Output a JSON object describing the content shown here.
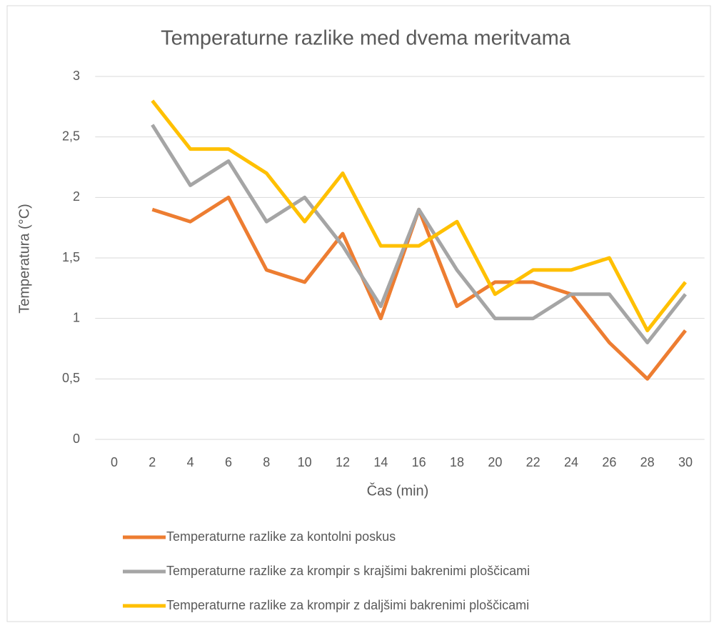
{
  "chart_data": {
    "type": "line",
    "title": "Temperaturne razlike med dvema meritvama",
    "x_label": "Čas (min)",
    "y_label": "Temperatura (°C)",
    "categories": [
      "0",
      "2",
      "4",
      "6",
      "8",
      "10",
      "12",
      "14",
      "16",
      "18",
      "20",
      "22",
      "24",
      "26",
      "28",
      "30"
    ],
    "series": [
      {
        "name": "Temperaturne razlike za kontolni poskus",
        "color": "#ed7d31",
        "values": [
          null,
          1.9,
          1.8,
          2.0,
          1.4,
          1.3,
          1.7,
          1.0,
          1.9,
          1.1,
          1.3,
          1.3,
          1.2,
          0.8,
          0.5,
          0.9
        ]
      },
      {
        "name": "Temperaturne razlike za krompir s krajšimi bakrenimi ploščicami",
        "color": "#a5a5a5",
        "values": [
          null,
          2.6,
          2.1,
          2.3,
          1.8,
          2.0,
          1.6,
          1.1,
          1.9,
          1.4,
          1.0,
          1.0,
          1.2,
          1.2,
          0.8,
          1.2
        ]
      },
      {
        "name": "Temperaturne razlike za krompir z daljšimi bakrenimi ploščicami",
        "color": "#ffc000",
        "values": [
          null,
          2.8,
          2.4,
          2.4,
          2.2,
          1.8,
          2.2,
          1.6,
          1.6,
          1.8,
          1.2,
          1.4,
          1.4,
          1.5,
          0.9,
          1.3
        ]
      }
    ],
    "ylim": [
      0,
      3
    ],
    "yticks": [
      0,
      {
        "value": 0.5,
        "label": "0,5"
      },
      1,
      {
        "value": 1.5,
        "label": "1,5"
      },
      2,
      {
        "value": 2.5,
        "label": "2,5"
      },
      3
    ],
    "grid": true,
    "legend": "bottom"
  }
}
